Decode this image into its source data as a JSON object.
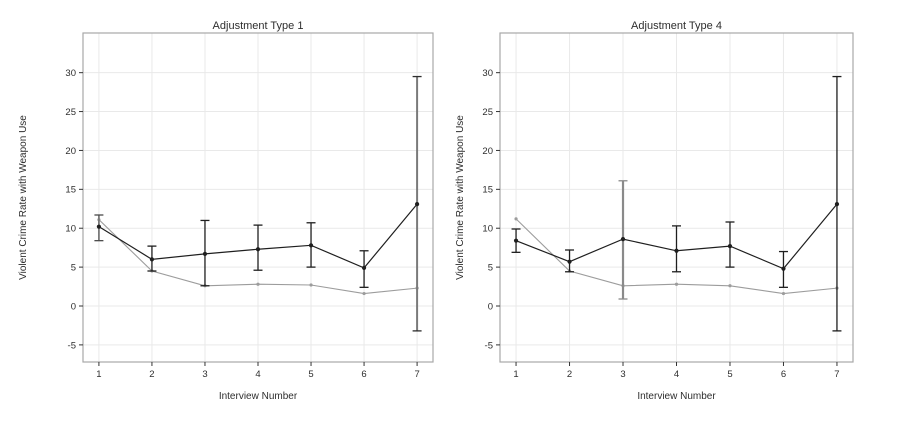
{
  "figure": {
    "background": "#ffffff",
    "description": "Two side-by-side line charts with error bars"
  },
  "chart_data": [
    {
      "type": "line",
      "title": "Adjustment Type 1",
      "xlabel": "Interview Number",
      "ylabel": "Violent Crime Rate with Weapon Use",
      "x_ticks": [
        1,
        2,
        3,
        4,
        5,
        6,
        7
      ],
      "y_ticks": [
        -5,
        0,
        5,
        10,
        15,
        20,
        25,
        30
      ],
      "xlim": [
        0.7,
        7.3
      ],
      "ylim": [
        -7.2,
        35.1
      ],
      "grid": true,
      "legend": "none",
      "colors": {
        "grid": "#e9e9e9",
        "panel_border": "#a8a8a8",
        "tick": "#333333",
        "text": "#2e2e2e"
      },
      "series": [
        {
          "name": "adjusted-estimate-black",
          "color": "#1f1f1f",
          "marker": "circle",
          "values": [
            10.2,
            6.0,
            6.7,
            7.3,
            7.8,
            4.9,
            13.1
          ],
          "error_bars": [
            {
              "low": 8.4,
              "high": 11.7,
              "color": "#7a7a7a",
              "cap_color": "#4a4a4a",
              "width": 1.8
            },
            {
              "low": 4.5,
              "high": 7.7,
              "color": "#1f1f1f",
              "cap_color": "#1f1f1f",
              "width": 1.3
            },
            {
              "low": 2.6,
              "high": 11.0,
              "color": "#1f1f1f",
              "cap_color": "#1f1f1f",
              "width": 1.3
            },
            {
              "low": 4.6,
              "high": 10.4,
              "color": "#1f1f1f",
              "cap_color": "#1f1f1f",
              "width": 1.3
            },
            {
              "low": 5.0,
              "high": 10.7,
              "color": "#1f1f1f",
              "cap_color": "#1f1f1f",
              "width": 1.3
            },
            {
              "low": 2.4,
              "high": 7.1,
              "color": "#1f1f1f",
              "cap_color": "#1f1f1f",
              "width": 1.3
            },
            {
              "low": -3.2,
              "high": 29.5,
              "color": "#7a7a7a",
              "cap_color": "#2e2e2e",
              "width": 2.0
            }
          ]
        },
        {
          "name": "comparison-line-gray",
          "color": "#9c9c9c",
          "marker": "circle",
          "values": [
            11.1,
            4.5,
            2.6,
            2.8,
            2.7,
            1.6,
            2.3
          ],
          "error_bars": []
        }
      ]
    },
    {
      "type": "line",
      "title": "Adjustment Type 4",
      "xlabel": "Interview Number",
      "ylabel": "Violent Crime Rate with Weapon Use",
      "x_ticks": [
        1,
        2,
        3,
        4,
        5,
        6,
        7
      ],
      "y_ticks": [
        -5,
        0,
        5,
        10,
        15,
        20,
        25,
        30
      ],
      "xlim": [
        0.7,
        7.3
      ],
      "ylim": [
        -7.2,
        35.1
      ],
      "grid": true,
      "legend": "none",
      "colors": {
        "grid": "#e9e9e9",
        "panel_border": "#a8a8a8",
        "tick": "#333333",
        "text": "#2e2e2e"
      },
      "series": [
        {
          "name": "adjusted-estimate-black",
          "color": "#1f1f1f",
          "marker": "circle",
          "values": [
            8.4,
            5.7,
            8.6,
            7.1,
            7.7,
            4.8,
            13.1
          ],
          "error_bars": [
            {
              "low": 6.9,
              "high": 9.9,
              "color": "#1f1f1f",
              "cap_color": "#1f1f1f",
              "width": 1.3
            },
            {
              "low": 4.4,
              "high": 7.2,
              "color": "#1f1f1f",
              "cap_color": "#1f1f1f",
              "width": 1.3
            },
            {
              "low": 0.9,
              "high": 16.1,
              "color": "#8a8a8a",
              "cap_color": "#8a8a8a",
              "width": 2.2
            },
            {
              "low": 4.4,
              "high": 10.3,
              "color": "#1f1f1f",
              "cap_color": "#1f1f1f",
              "width": 1.3
            },
            {
              "low": 5.0,
              "high": 10.8,
              "color": "#1f1f1f",
              "cap_color": "#1f1f1f",
              "width": 1.3
            },
            {
              "low": 2.4,
              "high": 7.0,
              "color": "#1f1f1f",
              "cap_color": "#1f1f1f",
              "width": 1.3
            },
            {
              "low": -3.2,
              "high": 29.5,
              "color": "#1f1f1f",
              "cap_color": "#1f1f1f",
              "width": 1.3
            }
          ]
        },
        {
          "name": "comparison-line-gray",
          "color": "#9c9c9c",
          "marker": "circle",
          "values": [
            11.2,
            4.5,
            2.6,
            2.8,
            2.6,
            1.6,
            2.3
          ],
          "error_bars": []
        }
      ]
    }
  ]
}
